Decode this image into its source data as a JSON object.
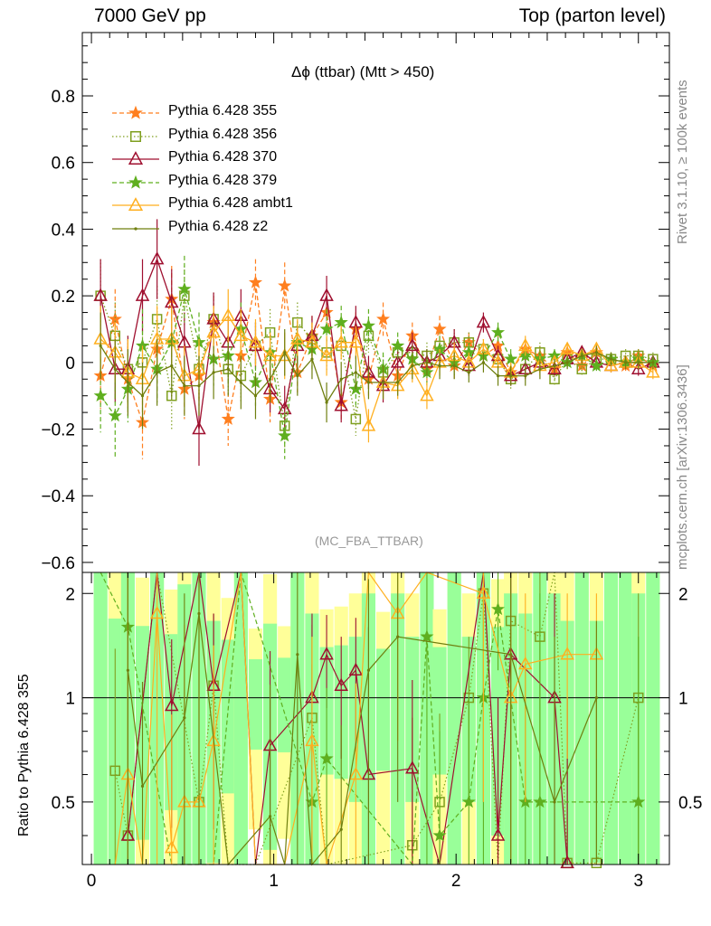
{
  "header": {
    "left": "7000 GeV pp",
    "right": "Top (parton level)"
  },
  "side_text": {
    "rivet": "Rivet 3.1.10, ≥ 100k events",
    "mcplots": "mcplots.cern.ch [arXiv:1306.3436]"
  },
  "watermark": "(MC_FBA_TTBAR)",
  "ratio_ylabel": "Ratio to Pythia 6.428 355",
  "chart_data": {
    "type": "line",
    "title": "Δϕ (ttbar) (Mtt > 450)",
    "xlabel": "",
    "ylabel": "",
    "xlim": [
      -0.05,
      3.17
    ],
    "ylim": [
      -0.63,
      0.99
    ],
    "x_ticks": [
      "0",
      "1",
      "2",
      "3"
    ],
    "y_ticks": [
      "−0.6",
      "−0.4",
      "−0.2",
      "0",
      "0.2",
      "0.4",
      "0.6",
      "0.8"
    ],
    "ratio_ylim": [
      0.33,
      2.3
    ],
    "ratio_ticks": [
      "0.5",
      "1",
      "2"
    ],
    "legend_position": "top-left",
    "x": [
      0.05,
      0.13,
      0.2,
      0.28,
      0.36,
      0.44,
      0.51,
      0.59,
      0.67,
      0.75,
      0.82,
      0.9,
      0.98,
      1.06,
      1.13,
      1.21,
      1.29,
      1.37,
      1.45,
      1.52,
      1.6,
      1.68,
      1.76,
      1.84,
      1.91,
      1.99,
      2.07,
      2.15,
      2.23,
      2.3,
      2.38,
      2.46,
      2.54,
      2.61,
      2.69,
      2.77,
      2.85,
      2.93,
      3.0,
      3.08
    ],
    "series": [
      {
        "name": "Pythia 6.428 355",
        "color": "#ff7f1f",
        "marker": "star",
        "style": "dashed",
        "values": [
          -0.04,
          0.13,
          -0.05,
          -0.18,
          0.04,
          0.19,
          -0.08,
          -0.04,
          0.12,
          -0.17,
          0.02,
          0.24,
          -0.11,
          0.23,
          -0.03,
          0.08,
          0.15,
          -0.12,
          0.1,
          -0.05,
          0.13,
          -0.04,
          0.08,
          -0.02,
          0.1,
          -0.01,
          0.06,
          0.02,
          0.05,
          -0.03,
          0.04,
          0.02,
          -0.02,
          0.03,
          -0.01,
          0.03,
          0.01,
          -0.01,
          0.02,
          -0.01
        ],
        "errors": [
          0.1,
          0.09,
          0.1,
          0.11,
          0.1,
          0.1,
          0.09,
          0.09,
          0.08,
          0.08,
          0.08,
          0.07,
          0.07,
          0.07,
          0.06,
          0.06,
          0.06,
          0.05,
          0.05,
          0.05,
          0.05,
          0.04,
          0.04,
          0.04,
          0.04,
          0.04,
          0.03,
          0.03,
          0.03,
          0.03,
          0.03,
          0.03,
          0.02,
          0.02,
          0.02,
          0.02,
          0.02,
          0.02,
          0.02,
          0.02
        ]
      },
      {
        "name": "Pythia 6.428 356",
        "color": "#7f9f1f",
        "marker": "square",
        "style": "dotted",
        "values": [
          0.2,
          0.08,
          -0.02,
          0.0,
          0.13,
          -0.1,
          0.2,
          -0.02,
          0.13,
          -0.02,
          -0.04,
          0.05,
          0.09,
          -0.19,
          0.12,
          0.07,
          0.03,
          0.05,
          -0.17,
          0.08,
          -0.03,
          0.03,
          0.03,
          0.02,
          0.05,
          0.06,
          0.06,
          0.04,
          0.01,
          -0.05,
          -0.02,
          0.03,
          -0.05,
          0.01,
          -0.02,
          0.01,
          0.01,
          0.02,
          0.02,
          0.01
        ],
        "errors": [
          0.11,
          0.1,
          0.1,
          0.11,
          0.1,
          0.1,
          0.09,
          0.09,
          0.08,
          0.08,
          0.08,
          0.07,
          0.07,
          0.07,
          0.06,
          0.06,
          0.06,
          0.05,
          0.05,
          0.05,
          0.05,
          0.04,
          0.04,
          0.04,
          0.04,
          0.04,
          0.03,
          0.03,
          0.03,
          0.03,
          0.03,
          0.03,
          0.02,
          0.02,
          0.02,
          0.02,
          0.02,
          0.02,
          0.02,
          0.02
        ]
      },
      {
        "name": "Pythia 6.428 370",
        "color": "#9f0f2f",
        "marker": "triangle",
        "style": "solid",
        "values": [
          0.2,
          -0.02,
          -0.02,
          0.2,
          0.31,
          0.18,
          0.06,
          -0.2,
          0.13,
          0.06,
          0.14,
          0.05,
          -0.08,
          -0.14,
          0.05,
          0.08,
          0.2,
          -0.13,
          0.12,
          -0.03,
          -0.07,
          0.0,
          0.05,
          0.0,
          0.02,
          0.06,
          -0.01,
          0.12,
          0.02,
          -0.04,
          -0.02,
          0.0,
          -0.02,
          0.01,
          0.03,
          0.0,
          -0.01,
          0.0,
          -0.02,
          0.0
        ],
        "errors": [
          0.11,
          0.1,
          0.1,
          0.11,
          0.12,
          0.1,
          0.09,
          0.11,
          0.08,
          0.08,
          0.08,
          0.07,
          0.07,
          0.07,
          0.06,
          0.06,
          0.06,
          0.05,
          0.05,
          0.05,
          0.05,
          0.04,
          0.04,
          0.04,
          0.04,
          0.04,
          0.03,
          0.03,
          0.03,
          0.03,
          0.03,
          0.03,
          0.02,
          0.02,
          0.02,
          0.02,
          0.02,
          0.02,
          0.02,
          0.02
        ]
      },
      {
        "name": "Pythia 6.428 379",
        "color": "#5faf1f",
        "marker": "star",
        "style": "dashed",
        "values": [
          -0.1,
          -0.16,
          -0.08,
          0.05,
          -0.02,
          0.06,
          0.22,
          0.06,
          0.01,
          0.02,
          0.1,
          -0.06,
          0.03,
          -0.22,
          0.06,
          0.04,
          0.1,
          0.12,
          -0.08,
          0.11,
          -0.02,
          0.05,
          0.01,
          -0.03,
          0.04,
          0.0,
          0.03,
          0.02,
          0.09,
          0.01,
          0.02,
          0.01,
          0.02,
          0.0,
          0.02,
          -0.01,
          0.01,
          0.0,
          0.01,
          0.0
        ],
        "errors": [
          0.11,
          0.13,
          0.1,
          0.11,
          0.1,
          0.1,
          0.1,
          0.09,
          0.08,
          0.08,
          0.08,
          0.07,
          0.07,
          0.07,
          0.06,
          0.06,
          0.06,
          0.05,
          0.05,
          0.05,
          0.05,
          0.04,
          0.04,
          0.04,
          0.04,
          0.04,
          0.03,
          0.03,
          0.03,
          0.03,
          0.03,
          0.03,
          0.02,
          0.02,
          0.02,
          0.02,
          0.02,
          0.02,
          0.02,
          0.02
        ]
      },
      {
        "name": "Pythia 6.428 ambt1",
        "color": "#ffaf1f",
        "marker": "triangle",
        "style": "solid",
        "values": [
          0.07,
          0.03,
          -0.03,
          -0.05,
          0.07,
          0.07,
          -0.04,
          -0.02,
          0.09,
          0.14,
          0.08,
          0.06,
          0.02,
          0.02,
          0.07,
          0.06,
          0.02,
          0.06,
          0.06,
          -0.19,
          -0.06,
          -0.07,
          -0.02,
          -0.1,
          0.0,
          0.02,
          0.0,
          0.04,
          0.0,
          -0.03,
          0.05,
          -0.01,
          0.0,
          0.04,
          0.02,
          0.04,
          -0.01,
          0.0,
          0.0,
          -0.03
        ],
        "errors": [
          0.1,
          0.09,
          0.1,
          0.1,
          0.1,
          0.1,
          0.09,
          0.09,
          0.08,
          0.08,
          0.08,
          0.07,
          0.07,
          0.07,
          0.06,
          0.06,
          0.06,
          0.05,
          0.05,
          0.05,
          0.05,
          0.04,
          0.04,
          0.04,
          0.04,
          0.04,
          0.03,
          0.03,
          0.03,
          0.03,
          0.03,
          0.03,
          0.02,
          0.02,
          0.02,
          0.02,
          0.02,
          0.02,
          0.02,
          0.02
        ]
      },
      {
        "name": "Pythia 6.428 z2",
        "color": "#6f7f0f",
        "marker": "dot",
        "style": "solid",
        "values": [
          0.05,
          -0.02,
          -0.06,
          -0.1,
          -0.03,
          -0.01,
          -0.07,
          -0.07,
          -0.03,
          -0.02,
          -0.06,
          -0.1,
          -0.05,
          0.03,
          -0.04,
          0.01,
          -0.12,
          -0.05,
          -0.03,
          -0.06,
          -0.06,
          -0.06,
          -0.01,
          0.0,
          -0.01,
          -0.01,
          -0.03,
          0.0,
          -0.04,
          -0.04,
          -0.04,
          -0.02,
          -0.01,
          0.0,
          0.02,
          0.03,
          0.01,
          0.0,
          0.0,
          0.0
        ],
        "errors": [
          0.1,
          0.09,
          0.1,
          0.1,
          0.1,
          0.1,
          0.09,
          0.09,
          0.08,
          0.08,
          0.08,
          0.07,
          0.07,
          0.07,
          0.06,
          0.06,
          0.06,
          0.05,
          0.05,
          0.05,
          0.05,
          0.04,
          0.04,
          0.04,
          0.04,
          0.04,
          0.03,
          0.03,
          0.03,
          0.03,
          0.03,
          0.03,
          0.02,
          0.02,
          0.02,
          0.02,
          0.02,
          0.02,
          0.02,
          0.02
        ]
      }
    ]
  }
}
